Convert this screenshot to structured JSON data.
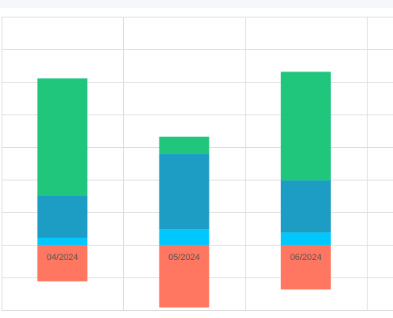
{
  "chart_data": {
    "type": "bar",
    "stacked": true,
    "categories": [
      "04/2024",
      "05/2024",
      "06/2024"
    ],
    "series": [
      {
        "values": [
          -112,
          -192,
          -137
        ],
        "color": "#ff7661"
      },
      {
        "values": [
          22,
          48,
          38
        ],
        "color": "#00c8ff"
      },
      {
        "values": [
          130,
          232,
          160
        ],
        "color": "#1d9dc3"
      },
      {
        "values": [
          359,
          52,
          333
        ],
        "color": "#1fc67c"
      }
    ],
    "ylim": [
      -200,
      700
    ],
    "grid": true
  }
}
